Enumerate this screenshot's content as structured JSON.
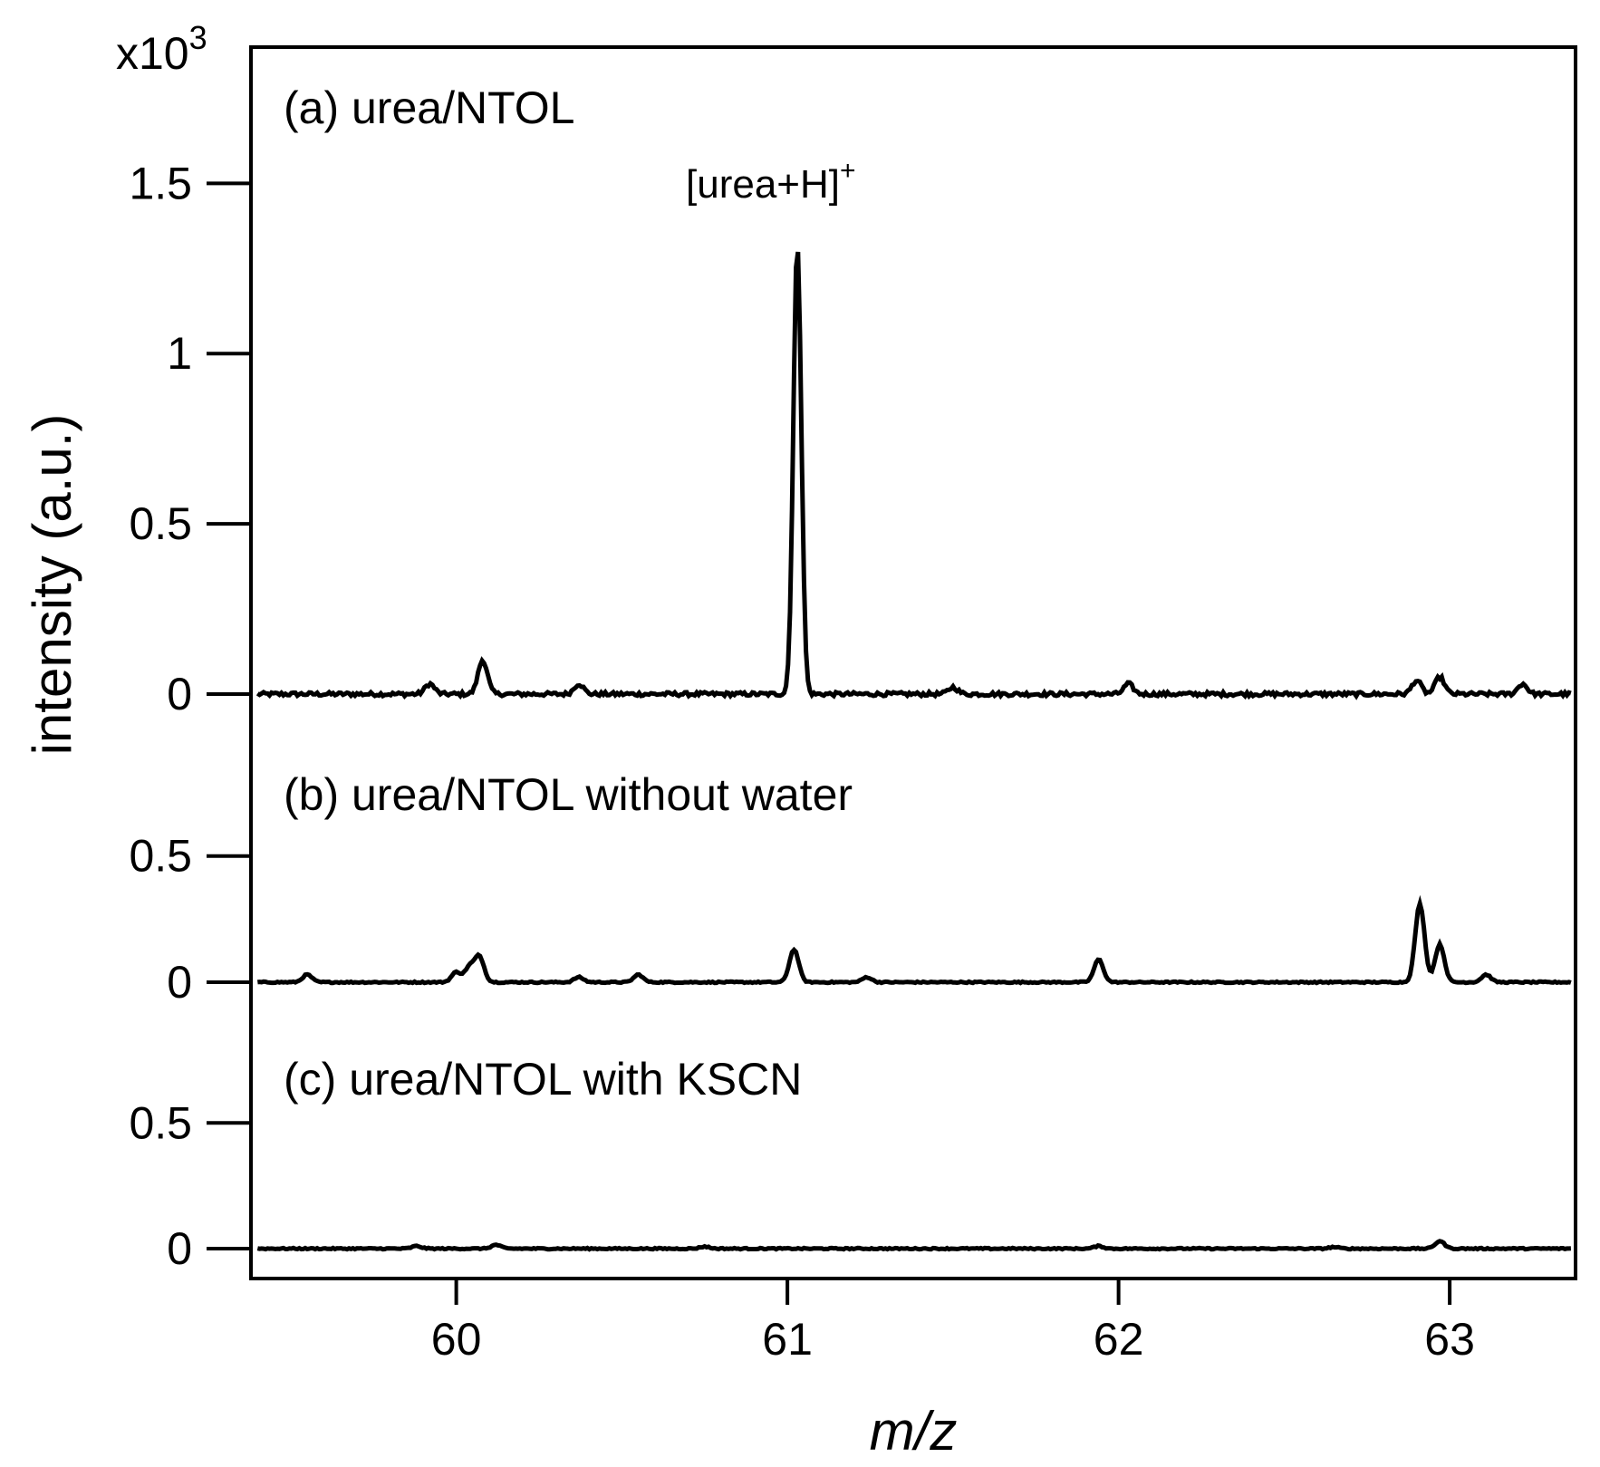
{
  "chart_data": {
    "type": "line",
    "xlabel": "m/z",
    "ylabel": "intensity (a.u.)",
    "y_scale_label": "x10",
    "y_scale_exponent": "3",
    "xlim": [
      59.38,
      63.38
    ],
    "x_ticks": [
      {
        "value": 60,
        "label": "60"
      },
      {
        "value": 61,
        "label": "61"
      },
      {
        "value": 62,
        "label": "62"
      },
      {
        "value": 63,
        "label": "63"
      }
    ],
    "grid": false,
    "legend": "none",
    "panels": [
      {
        "label": "(a) urea/NTOL",
        "ylim": [
          0,
          1.9
        ],
        "y_ticks": [
          {
            "value": 0,
            "label": "0"
          },
          {
            "value": 0.5,
            "label": "0.5"
          },
          {
            "value": 1,
            "label": "1"
          },
          {
            "value": 1.5,
            "label": "1.5"
          }
        ],
        "annotation": {
          "text": "[urea+H]",
          "superscript": "+"
        },
        "peaks": [
          {
            "mz": 59.92,
            "intensity": 0.03
          },
          {
            "mz": 60.08,
            "intensity": 0.1
          },
          {
            "mz": 60.37,
            "intensity": 0.03
          },
          {
            "mz": 61.03,
            "intensity": 1.32
          },
          {
            "mz": 61.5,
            "intensity": 0.02
          },
          {
            "mz": 62.03,
            "intensity": 0.03
          },
          {
            "mz": 62.9,
            "intensity": 0.04
          },
          {
            "mz": 62.97,
            "intensity": 0.05
          },
          {
            "mz": 63.22,
            "intensity": 0.03
          }
        ]
      },
      {
        "label": "(b) urea/NTOL without water",
        "ylim": [
          0,
          0.84
        ],
        "y_ticks": [
          {
            "value": 0,
            "label": "0"
          },
          {
            "value": 0.5,
            "label": "0.5"
          }
        ],
        "peaks": [
          {
            "mz": 59.55,
            "intensity": 0.03
          },
          {
            "mz": 60.0,
            "intensity": 0.04
          },
          {
            "mz": 60.04,
            "intensity": 0.06
          },
          {
            "mz": 60.07,
            "intensity": 0.1
          },
          {
            "mz": 60.37,
            "intensity": 0.02
          },
          {
            "mz": 60.55,
            "intensity": 0.03
          },
          {
            "mz": 61.02,
            "intensity": 0.13
          },
          {
            "mz": 61.24,
            "intensity": 0.02
          },
          {
            "mz": 61.94,
            "intensity": 0.09
          },
          {
            "mz": 62.91,
            "intensity": 0.31
          },
          {
            "mz": 62.97,
            "intensity": 0.15
          },
          {
            "mz": 63.11,
            "intensity": 0.03
          }
        ]
      },
      {
        "label": "(c) urea/NTOL with KSCN",
        "ylim": [
          0,
          0.84
        ],
        "y_ticks": [
          {
            "value": 0,
            "label": "0"
          },
          {
            "value": 0.5,
            "label": "0.5"
          }
        ],
        "peaks": [
          {
            "mz": 59.88,
            "intensity": 0.01
          },
          {
            "mz": 60.12,
            "intensity": 0.015
          },
          {
            "mz": 60.75,
            "intensity": 0.008
          },
          {
            "mz": 61.94,
            "intensity": 0.01
          },
          {
            "mz": 62.65,
            "intensity": 0.006
          },
          {
            "mz": 62.97,
            "intensity": 0.03
          }
        ]
      }
    ]
  }
}
